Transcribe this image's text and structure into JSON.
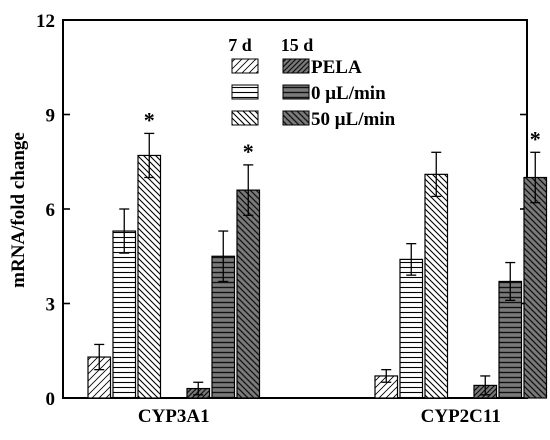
{
  "chart_data": {
    "type": "bar",
    "ylabel": "mRNA/fold change",
    "ylim": [
      0,
      12
    ],
    "yticks": [
      0,
      3,
      6,
      9,
      12
    ],
    "categories": [
      "CYP3A1",
      "CYP2C11"
    ],
    "time_points": [
      "7 d",
      "15 d"
    ],
    "series": [
      {
        "name": "PELA",
        "time": "7 d",
        "values": [
          1.3,
          0.7
        ],
        "errors": [
          0.4,
          0.2
        ],
        "pattern": "diag-light"
      },
      {
        "name": "0 μL/min",
        "time": "7 d",
        "values": [
          5.3,
          4.4
        ],
        "errors": [
          0.7,
          0.5
        ],
        "pattern": "horizontal"
      },
      {
        "name": "50 μL/min",
        "time": "7 d",
        "values": [
          7.7,
          7.1
        ],
        "errors": [
          0.7,
          0.7
        ],
        "pattern": "diag-back"
      },
      {
        "name": "PELA",
        "time": "15 d",
        "values": [
          0.3,
          0.4
        ],
        "errors": [
          0.2,
          0.3
        ],
        "pattern": "dark-diag"
      },
      {
        "name": "0 μL/min",
        "time": "15 d",
        "values": [
          4.5,
          3.7
        ],
        "errors": [
          0.8,
          0.6
        ],
        "pattern": "dark-horizontal"
      },
      {
        "name": "50 μL/min",
        "time": "15 d",
        "values": [
          6.6,
          7.0
        ],
        "errors": [
          0.8,
          0.8
        ],
        "pattern": "dark-back"
      }
    ],
    "significance": [
      {
        "category": "CYP3A1",
        "series_index": 2,
        "label": "*"
      },
      {
        "category": "CYP3A1",
        "series_index": 5,
        "label": "*"
      },
      {
        "category": "CYP2C11",
        "series_index": 5,
        "label": "*"
      }
    ],
    "legend": {
      "header": [
        "7 d",
        "15 d"
      ],
      "labels": [
        "PELA",
        "0 μL/min",
        "50 μL/min"
      ],
      "placement": "top-center"
    }
  }
}
